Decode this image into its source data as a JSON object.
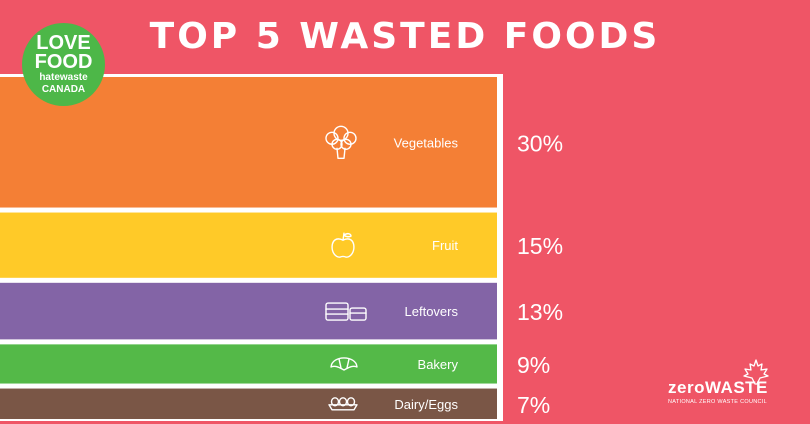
{
  "chart_data": {
    "type": "bar",
    "title": "TOP 5 WASTED FOODS",
    "categories": [
      "Vegetables",
      "Fruit",
      "Leftovers",
      "Bakery",
      "Dairy/Eggs"
    ],
    "values": [
      30,
      15,
      13,
      9,
      7
    ],
    "value_labels": [
      "30%",
      "15%",
      "13%",
      "9%",
      "7%"
    ],
    "icons": [
      "broccoli-icon",
      "apple-icon",
      "containers-icon",
      "croissant-icon",
      "egg-carton-icon"
    ],
    "colors": [
      "#f47f35",
      "#ffca28",
      "#8364a6",
      "#54b948",
      "#7a5646"
    ]
  },
  "logos": {
    "left": [
      "LOVE",
      "FOOD",
      "hatewaste",
      "CANADA"
    ],
    "right": {
      "main": "zeroWASTE",
      "sub": "NATIONAL ZERO WASTE COUNCIL"
    }
  },
  "colors": {
    "background": "#ef5566",
    "text": "#ffffff"
  }
}
